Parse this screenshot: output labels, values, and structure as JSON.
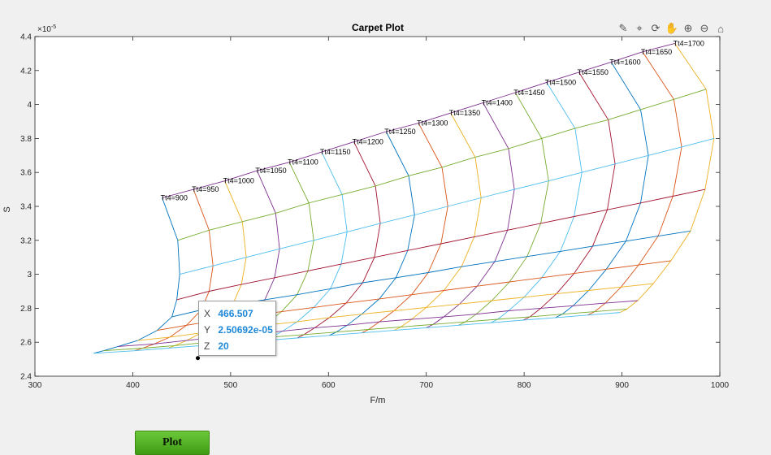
{
  "colors": {
    "series": [
      "#0072BD",
      "#D95319",
      "#EDB120",
      "#7E2F8E",
      "#77AC30",
      "#4DBEEE",
      "#A2142F"
    ],
    "button": "#4caf1f",
    "datatip_value": "#1e88d8"
  },
  "toolbar": {
    "icons": [
      "brush-icon",
      "datatip-icon",
      "rotate-icon",
      "pan-icon",
      "zoom-in-icon",
      "zoom-out-icon",
      "home-icon"
    ]
  },
  "datatip": {
    "x_key": "X",
    "x_val": "466.507",
    "y_key": "Y",
    "y_val": "2.50692e-05",
    "z_key": "Z",
    "z_val": "20"
  },
  "plot_button": {
    "label": "Plot"
  },
  "chart_data": {
    "type": "line",
    "title": "Carpet Plot",
    "xlabel": "F/m",
    "ylabel": "S",
    "y_exponent_label": "×10",
    "y_exponent_power": "-5",
    "xlim": [
      300,
      1000
    ],
    "ylim": [
      2.4,
      4.4
    ],
    "x_ticks": [
      "300",
      "400",
      "500",
      "600",
      "700",
      "800",
      "900",
      "1000"
    ],
    "y_ticks": [
      "2.4",
      "2.6",
      "2.8",
      "3",
      "3.2",
      "3.4",
      "3.6",
      "3.8",
      "4",
      "4.2",
      "4.4"
    ],
    "grid": false,
    "tt4_labels": [
      "Tt4=900",
      "Tt4=950",
      "Tt4=1000",
      "Tt4=1050",
      "Tt4=1100",
      "Tt4=1150",
      "Tt4=1200",
      "Tt4=1250",
      "Tt4=1300",
      "Tt4=1350",
      "Tt4=1400",
      "Tt4=1450",
      "Tt4=1500",
      "Tt4=1550",
      "Tt4=1600",
      "Tt4=1650",
      "Tt4=1700"
    ],
    "tt4_series": [
      {
        "tt4": 900,
        "x": [
          430,
          446,
          448,
          445,
          440,
          425,
          405,
          385,
          370,
          360
        ],
        "y": [
          3.45,
          3.2,
          3.0,
          2.85,
          2.75,
          2.67,
          2.61,
          2.575,
          2.55,
          2.535
        ]
      },
      {
        "tt4": 950,
        "x": [
          462,
          478,
          482,
          478,
          470,
          455,
          438,
          422,
          410,
          402
        ],
        "y": [
          3.5,
          3.26,
          3.05,
          2.9,
          2.79,
          2.7,
          2.63,
          2.59,
          2.565,
          2.55
        ]
      },
      {
        "tt4": 1000,
        "x": [
          494,
          512,
          516,
          511,
          502,
          487,
          470,
          455,
          443,
          436
        ],
        "y": [
          3.55,
          3.31,
          3.1,
          2.94,
          2.82,
          2.73,
          2.655,
          2.61,
          2.58,
          2.565
        ]
      },
      {
        "tt4": 1050,
        "x": [
          527,
          546,
          550,
          545,
          535,
          519,
          502,
          487,
          476,
          469
        ],
        "y": [
          3.61,
          3.36,
          3.15,
          2.98,
          2.85,
          2.755,
          2.68,
          2.63,
          2.6,
          2.58
        ]
      },
      {
        "tt4": 1100,
        "x": [
          560,
          580,
          585,
          579,
          568,
          552,
          535,
          520,
          509,
          502
        ],
        "y": [
          3.66,
          3.42,
          3.2,
          3.02,
          2.88,
          2.78,
          2.7,
          2.645,
          2.615,
          2.595
        ]
      },
      {
        "tt4": 1150,
        "x": [
          593,
          614,
          619,
          613,
          602,
          585,
          568,
          553,
          542,
          535
        ],
        "y": [
          3.72,
          3.47,
          3.25,
          3.06,
          2.915,
          2.805,
          2.72,
          2.665,
          2.63,
          2.61
        ]
      },
      {
        "tt4": 1200,
        "x": [
          626,
          648,
          653,
          647,
          635,
          618,
          601,
          586,
          575,
          568
        ],
        "y": [
          3.78,
          3.52,
          3.3,
          3.1,
          2.95,
          2.83,
          2.745,
          2.685,
          2.645,
          2.625
        ]
      },
      {
        "tt4": 1250,
        "x": [
          659,
          682,
          688,
          681,
          669,
          652,
          634,
          619,
          608,
          601
        ],
        "y": [
          3.84,
          3.58,
          3.35,
          3.14,
          2.98,
          2.855,
          2.765,
          2.7,
          2.66,
          2.64
        ]
      },
      {
        "tt4": 1300,
        "x": [
          692,
          716,
          722,
          715,
          702,
          685,
          667,
          652,
          641,
          634
        ],
        "y": [
          3.89,
          3.63,
          3.4,
          3.18,
          3.01,
          2.88,
          2.785,
          2.72,
          2.675,
          2.655
        ]
      },
      {
        "tt4": 1350,
        "x": [
          725,
          750,
          756,
          749,
          736,
          718,
          700,
          685,
          674,
          667
        ],
        "y": [
          3.95,
          3.69,
          3.45,
          3.22,
          3.045,
          2.905,
          2.805,
          2.735,
          2.69,
          2.67
        ]
      },
      {
        "tt4": 1400,
        "x": [
          758,
          784,
          790,
          783,
          770,
          752,
          734,
          718,
          707,
          700
        ],
        "y": [
          4.01,
          3.74,
          3.5,
          3.26,
          3.075,
          2.93,
          2.825,
          2.75,
          2.705,
          2.685
        ]
      },
      {
        "tt4": 1450,
        "x": [
          791,
          818,
          825,
          817,
          803,
          785,
          767,
          751,
          740,
          733
        ],
        "y": [
          4.07,
          3.8,
          3.55,
          3.3,
          3.105,
          2.955,
          2.845,
          2.765,
          2.72,
          2.7
        ]
      },
      {
        "tt4": 1500,
        "x": [
          823,
          852,
          859,
          851,
          837,
          818,
          800,
          784,
          773,
          766
        ],
        "y": [
          4.13,
          3.86,
          3.6,
          3.34,
          3.135,
          2.98,
          2.865,
          2.785,
          2.735,
          2.715
        ]
      },
      {
        "tt4": 1550,
        "x": [
          856,
          886,
          893,
          885,
          870,
          851,
          833,
          817,
          806,
          799
        ],
        "y": [
          4.19,
          3.91,
          3.65,
          3.38,
          3.165,
          3.005,
          2.885,
          2.8,
          2.75,
          2.73
        ]
      },
      {
        "tt4": 1600,
        "x": [
          889,
          919,
          927,
          919,
          904,
          884,
          866,
          850,
          839,
          832
        ],
        "y": [
          4.25,
          3.97,
          3.7,
          3.42,
          3.195,
          3.03,
          2.905,
          2.815,
          2.765,
          2.745
        ]
      },
      {
        "tt4": 1650,
        "x": [
          921,
          953,
          961,
          952,
          937,
          917,
          899,
          883,
          872,
          865
        ],
        "y": [
          4.31,
          4.03,
          3.75,
          3.46,
          3.225,
          3.055,
          2.925,
          2.83,
          2.78,
          2.76
        ]
      },
      {
        "tt4": 1700,
        "x": [
          954,
          986,
          994,
          985,
          970,
          950,
          932,
          916,
          905,
          898
        ],
        "y": [
          4.36,
          4.09,
          3.8,
          3.5,
          3.255,
          3.08,
          2.945,
          2.845,
          2.795,
          2.775
        ]
      }
    ],
    "datatip_point": {
      "x": 466.507,
      "y": 2.50692
    }
  }
}
